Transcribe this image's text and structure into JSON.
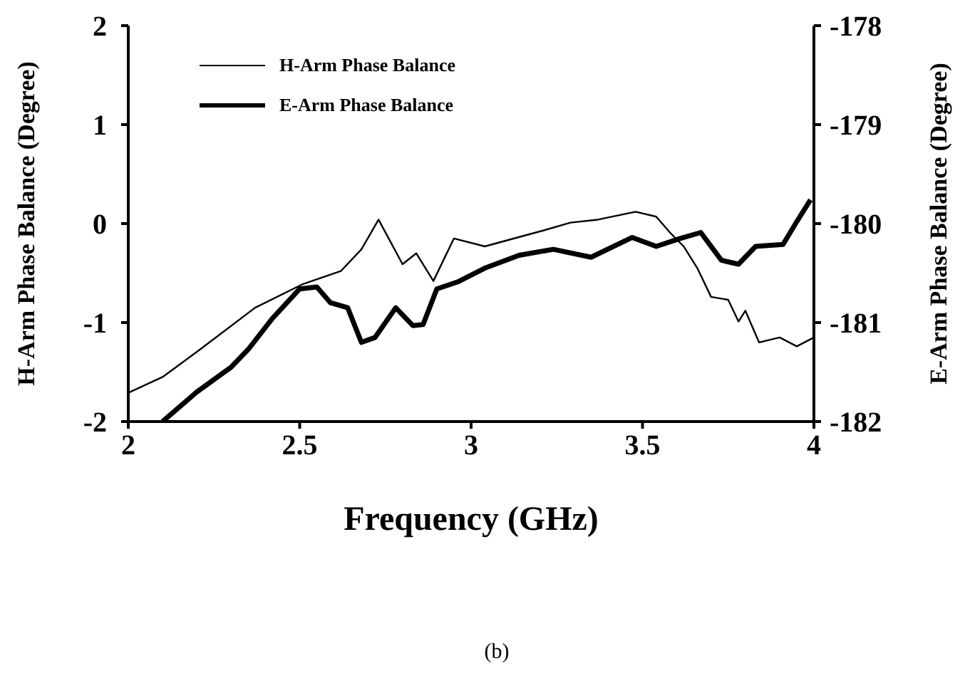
{
  "chart_data": {
    "type": "line",
    "xlabel": "Frequency (GHz)",
    "ylabel": "H-Arm Phase Balance (Degree)",
    "y2label": "E-Arm Phase Balance (Degree)",
    "xlim": [
      2,
      4
    ],
    "xticks": [
      2,
      2.5,
      3,
      3.5,
      4
    ],
    "ylim": [
      -2,
      2
    ],
    "yticks": [
      -2,
      -1,
      0,
      1,
      2
    ],
    "y2lim": [
      -182,
      -178
    ],
    "y2ticks": [
      -182,
      -181,
      -180,
      -179,
      -178
    ],
    "legend": "top left",
    "annotations": [
      "(b)"
    ],
    "series": [
      {
        "name": "H-Arm Phase Balance",
        "color": "#000000",
        "x": [
          2.0,
          2.1,
          2.21,
          2.37,
          2.51,
          2.62,
          2.68,
          2.73,
          2.8,
          2.84,
          2.89,
          2.95,
          3.04,
          3.21,
          3.29,
          3.37,
          3.48,
          3.54,
          3.58,
          3.62,
          3.66,
          3.7,
          3.75,
          3.78,
          3.8,
          3.84,
          3.9,
          3.95,
          4.0
        ],
        "values": [
          -1.71,
          -1.55,
          -1.27,
          -0.85,
          -0.61,
          -0.48,
          -0.26,
          0.04,
          -0.41,
          -0.3,
          -0.58,
          -0.15,
          -0.23,
          -0.07,
          0.01,
          0.04,
          0.12,
          0.07,
          -0.09,
          -0.23,
          -0.45,
          -0.74,
          -0.77,
          -0.99,
          -0.88,
          -1.2,
          -1.15,
          -1.24,
          -1.15
        ]
      },
      {
        "name": "E-Arm Phase Balance",
        "color": "#000000",
        "axis": "y2",
        "x": [
          2.1,
          2.2,
          2.3,
          2.35,
          2.42,
          2.5,
          2.55,
          2.59,
          2.64,
          2.68,
          2.72,
          2.78,
          2.83,
          2.86,
          2.9,
          2.96,
          3.04,
          3.14,
          3.24,
          3.35,
          3.47,
          3.54,
          3.61,
          3.67,
          3.73,
          3.78,
          3.83,
          3.91,
          3.95,
          3.99
        ],
        "values": [
          -182.0,
          -181.7,
          -181.45,
          -181.27,
          -180.96,
          -180.66,
          -180.64,
          -180.8,
          -180.85,
          -181.2,
          -181.15,
          -180.85,
          -181.03,
          -181.02,
          -180.66,
          -180.59,
          -180.45,
          -180.32,
          -180.26,
          -180.34,
          -180.14,
          -180.23,
          -180.15,
          -180.09,
          -180.37,
          -180.41,
          -180.23,
          -180.21,
          -179.98,
          -179.76
        ]
      }
    ]
  }
}
